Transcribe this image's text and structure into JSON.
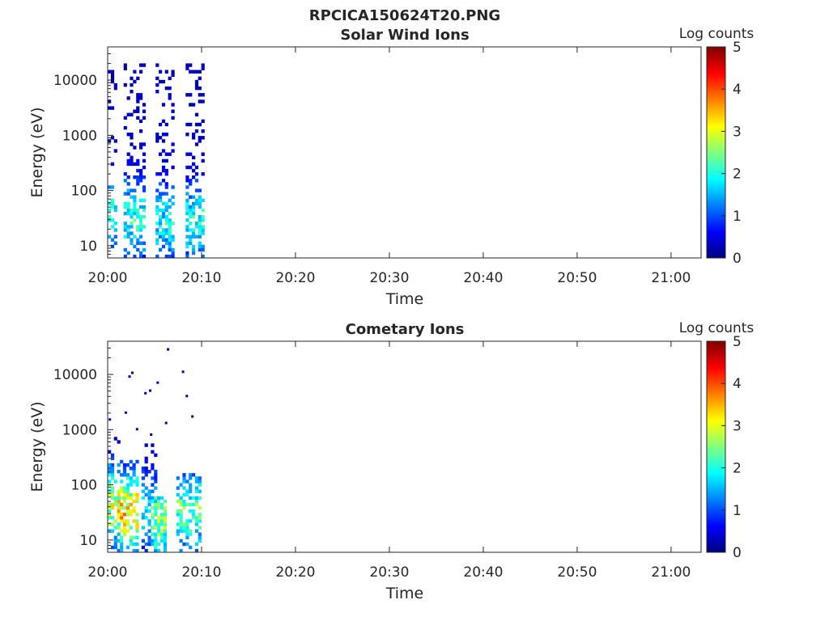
{
  "figure_title": "RPCICA150624T20.PNG",
  "chart_data": [
    {
      "type": "heatmap",
      "title": "Solar Wind Ions",
      "xlabel": "Time",
      "ylabel": "Energy (eV)",
      "x_ticks": [
        "20:00",
        "20:10",
        "20:20",
        "20:30",
        "20:40",
        "20:50",
        "21:00"
      ],
      "x_tick_minutes": [
        0,
        10,
        20,
        30,
        40,
        50,
        60
      ],
      "xlim_minutes": [
        0,
        63.2
      ],
      "y_scale": "log",
      "ylim": [
        6,
        40000
      ],
      "y_ticks": [
        "10",
        "100",
        "1000",
        "10000"
      ],
      "y_tick_values": [
        10,
        100,
        1000,
        10000
      ],
      "colorbar": {
        "label": "Log counts",
        "ticks": [
          "0",
          "1",
          "2",
          "3",
          "4",
          "5"
        ],
        "range": [
          0,
          5
        ],
        "colormap": "jet"
      },
      "time_bin_minutes": 0.333,
      "energy_bins": 64,
      "bursts": [
        {
          "t": [
            0.0,
            0.7
          ],
          "e": [
            6,
            20000
          ],
          "peak_log_counts": 1.9,
          "peak_energy": 45,
          "density": 0.35
        },
        {
          "t": [
            1.7,
            3.7
          ],
          "e": [
            6,
            20000
          ],
          "peak_log_counts": 2.0,
          "peak_energy": 30,
          "density": 0.55
        },
        {
          "t": [
            5.1,
            6.9
          ],
          "e": [
            6,
            20000
          ],
          "peak_log_counts": 1.8,
          "peak_energy": 25,
          "density": 0.55
        },
        {
          "t": [
            8.3,
            10.1
          ],
          "e": [
            6,
            20000
          ],
          "peak_log_counts": 1.9,
          "peak_energy": 25,
          "density": 0.55
        }
      ]
    },
    {
      "type": "heatmap",
      "title": "Cometary Ions",
      "xlabel": "Time",
      "ylabel": "Energy (eV)",
      "x_ticks": [
        "20:00",
        "20:10",
        "20:20",
        "20:30",
        "20:40",
        "20:50",
        "21:00"
      ],
      "x_tick_minutes": [
        0,
        10,
        20,
        30,
        40,
        50,
        60
      ],
      "xlim_minutes": [
        0,
        63.2
      ],
      "y_scale": "log",
      "ylim": [
        6,
        40000
      ],
      "y_ticks": [
        "10",
        "100",
        "1000",
        "10000"
      ],
      "y_tick_values": [
        10,
        100,
        1000,
        10000
      ],
      "colorbar": {
        "label": "Log counts",
        "ticks": [
          "0",
          "1",
          "2",
          "3",
          "4",
          "5"
        ],
        "range": [
          0,
          5
        ],
        "colormap": "jet"
      },
      "time_bin_minutes": 0.333,
      "energy_bins": 64,
      "bursts": [
        {
          "t": [
            0.0,
            1.3
          ],
          "e": [
            6,
            700
          ],
          "peak_log_counts": 3.0,
          "peak_energy": 40,
          "density": 0.6
        },
        {
          "t": [
            1.3,
            3.0
          ],
          "e": [
            6,
            250
          ],
          "peak_log_counts": 3.4,
          "peak_energy": 30,
          "density": 0.7
        },
        {
          "t": [
            3.6,
            5.0
          ],
          "e": [
            6,
            500
          ],
          "peak_log_counts": 1.6,
          "peak_energy": 30,
          "density": 0.5
        },
        {
          "t": [
            4.6,
            6.2
          ],
          "e": [
            6,
            60
          ],
          "peak_log_counts": 2.6,
          "peak_energy": 20,
          "density": 0.7
        },
        {
          "t": [
            7.3,
            9.9
          ],
          "e": [
            6,
            150
          ],
          "peak_log_counts": 2.3,
          "peak_energy": 30,
          "density": 0.55
        }
      ],
      "scattered_points": [
        {
          "t": 0.1,
          "e": 1500
        },
        {
          "t": 1.8,
          "e": 2000
        },
        {
          "t": 2.5,
          "e": 10500
        },
        {
          "t": 2.2,
          "e": 9000
        },
        {
          "t": 3.9,
          "e": 4500
        },
        {
          "t": 4.4,
          "e": 5000
        },
        {
          "t": 5.2,
          "e": 7000
        },
        {
          "t": 6.3,
          "e": 28000
        },
        {
          "t": 7.9,
          "e": 11000
        },
        {
          "t": 8.3,
          "e": 4000
        },
        {
          "t": 8.9,
          "e": 1700
        },
        {
          "t": 6.1,
          "e": 1300
        },
        {
          "t": 3.0,
          "e": 1000
        },
        {
          "t": 4.5,
          "e": 800
        }
      ]
    }
  ]
}
